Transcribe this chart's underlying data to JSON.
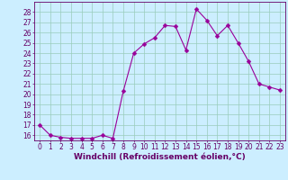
{
  "x": [
    0,
    1,
    2,
    3,
    4,
    5,
    6,
    7,
    8,
    9,
    10,
    11,
    12,
    13,
    14,
    15,
    16,
    17,
    18,
    19,
    20,
    21,
    22,
    23
  ],
  "y": [
    17.0,
    16.0,
    15.8,
    15.7,
    15.7,
    15.7,
    16.0,
    15.7,
    20.3,
    24.0,
    24.9,
    25.5,
    26.7,
    26.6,
    24.3,
    28.3,
    27.2,
    25.7,
    26.7,
    25.0,
    23.2,
    21.0,
    20.7,
    20.4
  ],
  "line_color": "#990099",
  "marker": "D",
  "marker_size": 2.5,
  "bg_color": "#cceeff",
  "grid_color": "#99ccbb",
  "xlabel": "Windchill (Refroidissement éolien,°C)",
  "xlim": [
    -0.5,
    23.5
  ],
  "ylim": [
    15.5,
    29.0
  ],
  "yticks": [
    16,
    17,
    18,
    19,
    20,
    21,
    22,
    23,
    24,
    25,
    26,
    27,
    28
  ],
  "xticks": [
    0,
    1,
    2,
    3,
    4,
    5,
    6,
    7,
    8,
    9,
    10,
    11,
    12,
    13,
    14,
    15,
    16,
    17,
    18,
    19,
    20,
    21,
    22,
    23
  ],
  "tick_color": "#660066",
  "label_color": "#660066",
  "tick_fontsize": 5.5,
  "xlabel_fontsize": 6.5
}
